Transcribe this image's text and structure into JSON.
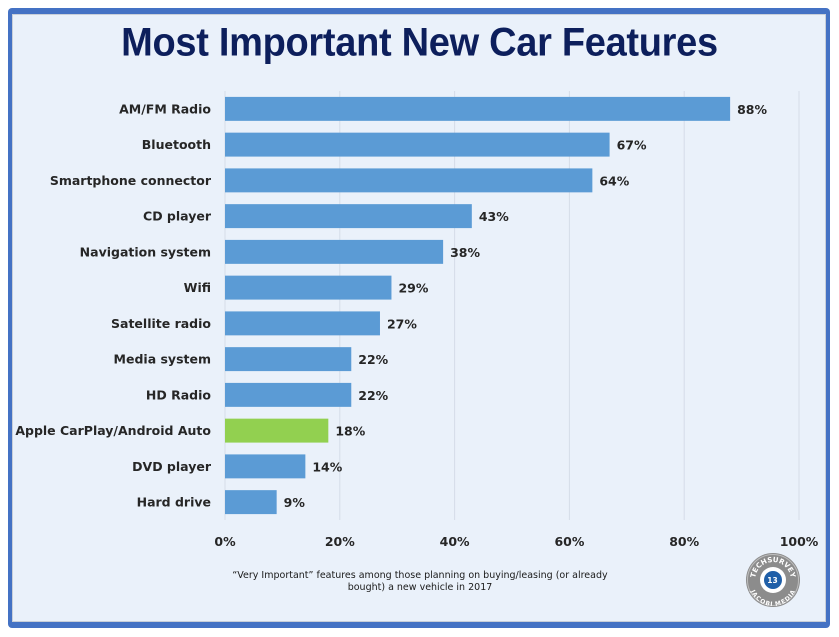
{
  "chart_data": {
    "type": "bar",
    "orientation": "horizontal",
    "title": "Most Important New Car Features",
    "categories": [
      "AM/FM Radio",
      "Bluetooth",
      "Smartphone connector",
      "CD player",
      "Navigation system",
      "Wifi",
      "Satellite radio",
      "Media system",
      "HD Radio",
      "Apple CarPlay/Android Auto",
      "DVD player",
      "Hard drive"
    ],
    "values": [
      88,
      67,
      64,
      43,
      38,
      29,
      27,
      22,
      22,
      18,
      14,
      9
    ],
    "value_labels": [
      "88%",
      "67%",
      "64%",
      "43%",
      "38%",
      "29%",
      "27%",
      "22%",
      "22%",
      "18%",
      "14%",
      "9%"
    ],
    "highlight_category": "Apple CarPlay/Android Auto",
    "xlabel": "",
    "ylabel": "",
    "xlim": [
      0,
      100
    ],
    "x_ticks": [
      0,
      20,
      40,
      60,
      80,
      100
    ],
    "x_tick_labels": [
      "0%",
      "20%",
      "40%",
      "60%",
      "80%",
      "100%"
    ],
    "grid": true,
    "legend": "none",
    "footnote": "“Very Important” features among those  planning on buying/leasing (or already bought) a new vehicle in 2017",
    "colors": {
      "bar": "#5b9bd5",
      "highlight_bar": "#92d050",
      "grid": "#d5dde8",
      "title": "#0d1f5c",
      "frame": "#4472c4",
      "background": "#eaf1fa"
    }
  },
  "footnote_lines": [
    "“Very Important” features among those  planning on buying/leasing (or already",
    "bought) a new vehicle in 2017"
  ],
  "logo": {
    "top_text": "TECHSURVEY",
    "bottom_text": "JACOBI MEDIA",
    "badge_number": "13",
    "icon": "play-icon"
  }
}
